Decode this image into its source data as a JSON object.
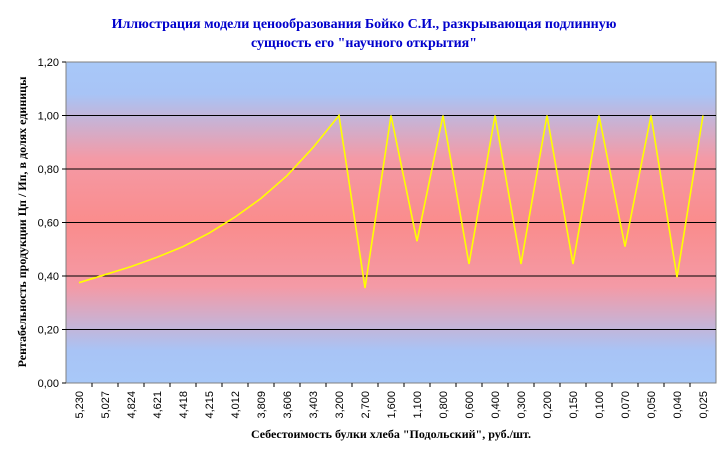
{
  "chart_data": {
    "type": "line",
    "title_line1": "Иллюстрация модели ценообразования Бойко С.И., разкрывающая подлинную",
    "title_line2": "сущность его \"научного открытия\"",
    "xlabel": "Себестоимость булки хлеба \"Подольский\", руб./шт.",
    "ylabel": "Рентабельность продукции Цп / Ип, в долях единицы",
    "ylim": [
      0,
      1.2
    ],
    "yticks": [
      "0,00",
      "0,20",
      "0,40",
      "0,60",
      "0,80",
      "1,00",
      "1,20"
    ],
    "categories": [
      "5,230",
      "5,027",
      "4,824",
      "4,621",
      "4,418",
      "4,215",
      "4,012",
      "3,809",
      "3,606",
      "3,403",
      "3,200",
      "2,700",
      "1,600",
      "1,100",
      "0,800",
      "0,600",
      "0,400",
      "0,300",
      "0,200",
      "0,150",
      "0,100",
      "0,070",
      "0,050",
      "0,040",
      "0,025"
    ],
    "series": [
      {
        "color": "#ffff00",
        "values": [
          0.375,
          0.405,
          0.435,
          0.47,
          0.51,
          0.56,
          0.62,
          0.69,
          0.775,
          0.88,
          1.0,
          0.355,
          1.0,
          0.53,
          1.0,
          0.445,
          1.0,
          0.445,
          1.0,
          0.445,
          1.0,
          0.51,
          1.0,
          0.395,
          1.0
        ]
      }
    ],
    "grid": true,
    "legend": "none"
  }
}
